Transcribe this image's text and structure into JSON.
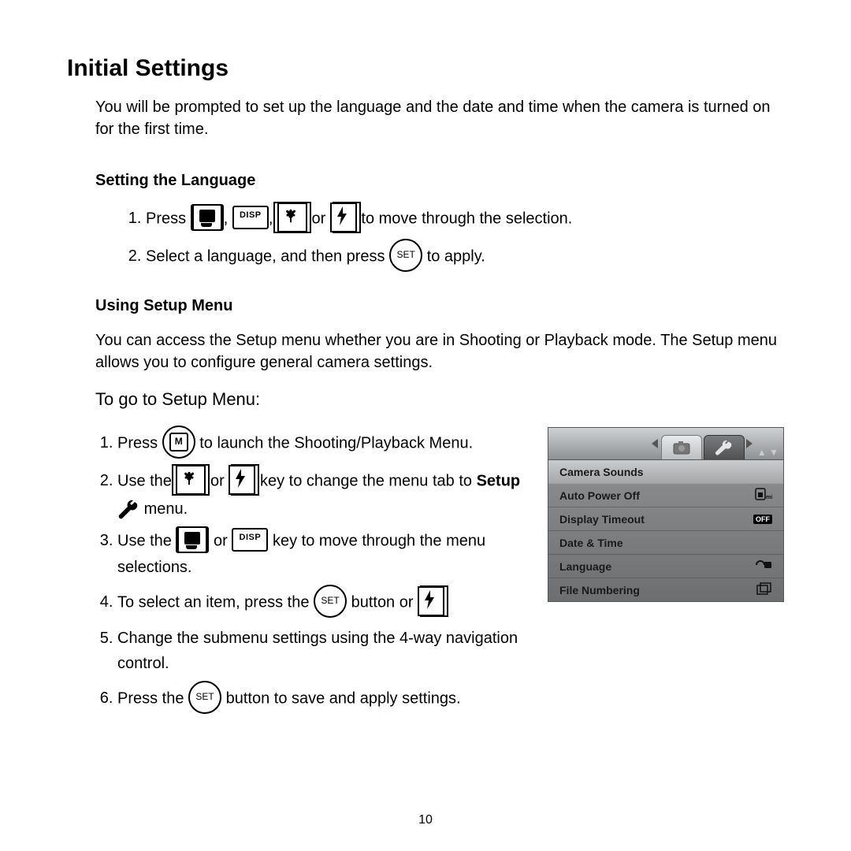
{
  "title": "Initial Settings",
  "intro": "You will be prompted to set up the language and the date and time when the camera is turned on for the first time.",
  "sec1": {
    "heading": "Setting the Language",
    "step1_a": "Press ",
    "step1_b": " or ",
    "step1_c": " to move through the selection.",
    "step2_a": "Select a language, and then press ",
    "step2_b": " to apply."
  },
  "sec2": {
    "heading": "Using Setup Menu",
    "intro": "You can access the Setup menu whether you are in Shooting or Playback mode. The Setup menu allows you to configure general camera settings.",
    "goto": "To go to Setup Menu:",
    "s1a": "Press ",
    "s1b": " to launch the Shooting/Playback Menu.",
    "s2a": "Use the ",
    "s2or": " or ",
    "s2b": " key to change the menu tab to ",
    "s2setup": "Setup",
    "s2c": " menu.",
    "s3a": "Use the ",
    "s3b": " key to move through the menu selections.",
    "s4a": "To select an item, press the ",
    "s4b": " button or ",
    "s4c": ".",
    "s5": "Change the submenu settings using the 4-way navigation control.",
    "s6a": "Press the ",
    "s6b": " button to save and apply settings."
  },
  "lcd": {
    "rows": [
      {
        "label": "Camera Sounds",
        "value": "",
        "sel": true
      },
      {
        "label": "Auto Power Off",
        "value": "1min_icon"
      },
      {
        "label": "Display Timeout",
        "value": "OFF"
      },
      {
        "label": "Date & Time",
        "value": ""
      },
      {
        "label": "Language",
        "value": "lang_icon"
      },
      {
        "label": "File Numbering",
        "value": "file_icon"
      }
    ],
    "updown": "▲ ▼"
  },
  "buttons": {
    "disp": "DISP",
    "set": "SET",
    "menu": "M"
  },
  "page_number": "10",
  "colors": {
    "text": "#000000",
    "bg": "#ffffff",
    "lcd_tab_active": "#5a5c5e",
    "lcd_body": "#7c7e80"
  }
}
